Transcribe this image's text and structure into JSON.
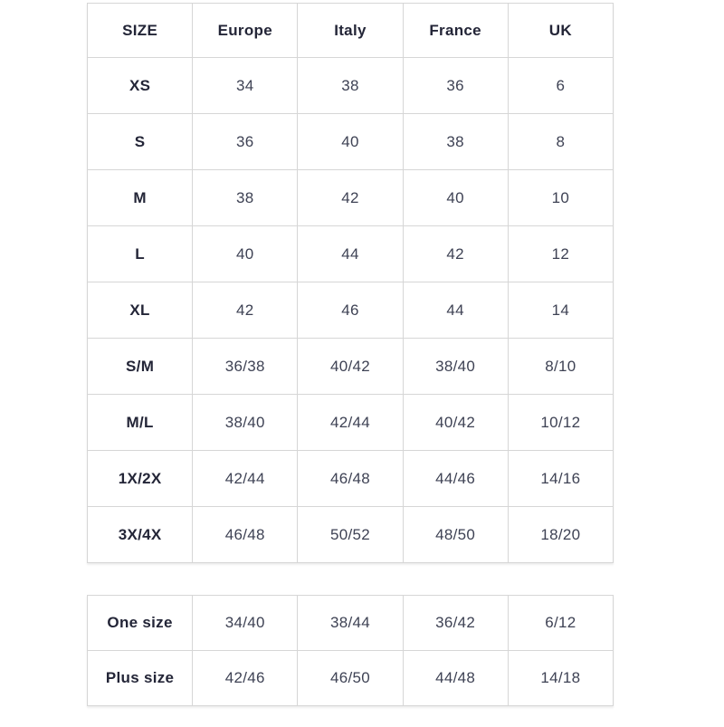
{
  "colors": {
    "border": "#d6d6d6",
    "header_text": "#232537",
    "value_text": "#3e4254",
    "background": "#ffffff"
  },
  "size_table": {
    "headers": [
      "SIZE",
      "Europe",
      "Italy",
      "France",
      "UK"
    ],
    "rows": [
      {
        "label": "XS",
        "values": [
          "34",
          "38",
          "36",
          "6"
        ]
      },
      {
        "label": "S",
        "values": [
          "36",
          "40",
          "38",
          "8"
        ]
      },
      {
        "label": "M",
        "values": [
          "38",
          "42",
          "40",
          "10"
        ]
      },
      {
        "label": "L",
        "values": [
          "40",
          "44",
          "42",
          "12"
        ]
      },
      {
        "label": "XL",
        "values": [
          "42",
          "46",
          "44",
          "14"
        ]
      },
      {
        "label": "S/M",
        "values": [
          "36/38",
          "40/42",
          "38/40",
          "8/10"
        ]
      },
      {
        "label": "M/L",
        "values": [
          "38/40",
          "42/44",
          "40/42",
          "10/12"
        ]
      },
      {
        "label": "1X/2X",
        "values": [
          "42/44",
          "46/48",
          "44/46",
          "14/16"
        ]
      },
      {
        "label": "3X/4X",
        "values": [
          "46/48",
          "50/52",
          "48/50",
          "18/20"
        ]
      }
    ]
  },
  "special_table": {
    "rows": [
      {
        "label": "One size",
        "values": [
          "34/40",
          "38/44",
          "36/42",
          "6/12"
        ]
      },
      {
        "label": "Plus size",
        "values": [
          "42/46",
          "46/50",
          "44/48",
          "14/18"
        ]
      }
    ]
  }
}
